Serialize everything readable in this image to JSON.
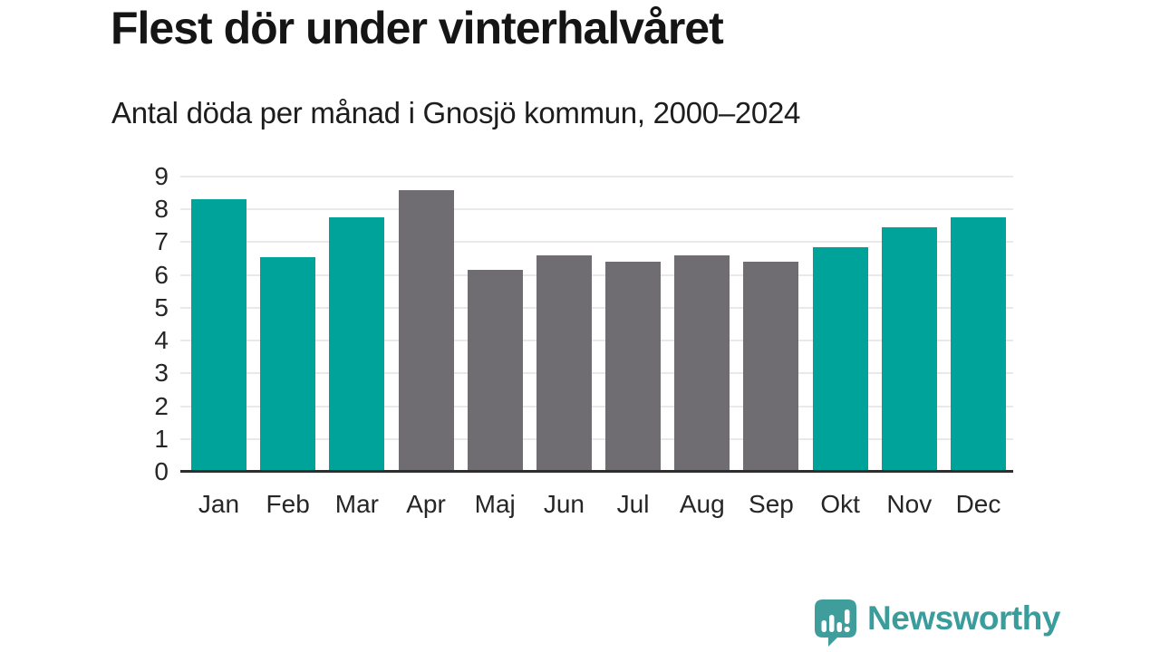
{
  "header": {
    "title": "Flest dör under vinterhalvåret",
    "subtitle": "Antal döda per månad i Gnosjö kommun, 2000–2024"
  },
  "chart_data": {
    "type": "bar",
    "title": "Flest dör under vinterhalvåret",
    "subtitle": "Antal döda per månad i Gnosjö kommun, 2000–2024",
    "categories": [
      "Jan",
      "Feb",
      "Mar",
      "Apr",
      "Maj",
      "Jun",
      "Jul",
      "Aug",
      "Sep",
      "Okt",
      "Nov",
      "Dec"
    ],
    "values": [
      8.3,
      6.55,
      7.75,
      8.6,
      6.15,
      6.6,
      6.4,
      6.6,
      6.4,
      6.85,
      7.45,
      7.75
    ],
    "bar_colors": [
      "#00a39a",
      "#00a39a",
      "#00a39a",
      "#6f6c72",
      "#6f6c72",
      "#6f6c72",
      "#6f6c72",
      "#6f6c72",
      "#6f6c72",
      "#00a39a",
      "#00a39a",
      "#00a39a"
    ],
    "xlabel": "",
    "ylabel": "",
    "ylim": [
      0,
      9
    ],
    "yticks": [
      0,
      1,
      2,
      3,
      4,
      5,
      6,
      7,
      8,
      9
    ],
    "grid": true,
    "legend_position": "none"
  },
  "footer": {
    "brand_label": "Newsworthy"
  },
  "colors": {
    "accent_teal": "#00a39a",
    "neutral_gray": "#6f6c72",
    "brand_teal": "#3b9d9b",
    "gridline": "#e9e9e9",
    "axis_line": "#2e2e2e",
    "text_dark": "#151515"
  }
}
